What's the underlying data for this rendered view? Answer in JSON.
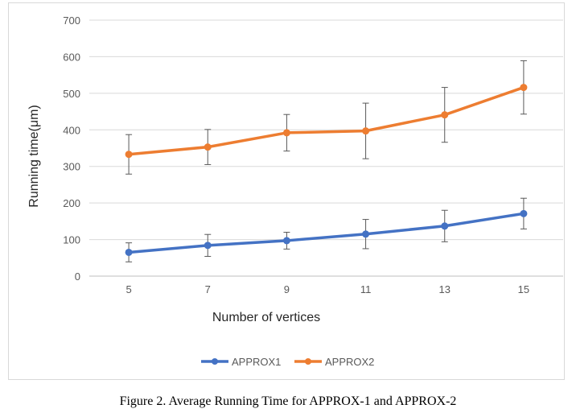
{
  "chart_data": {
    "type": "line",
    "x": [
      5,
      7,
      9,
      11,
      13,
      15
    ],
    "xlabel": "Number of vertices",
    "ylabel": "Running time(μm)",
    "ylim": [
      0,
      700
    ],
    "yticks": [
      0,
      100,
      200,
      300,
      400,
      500,
      600,
      700
    ],
    "grid": true,
    "legend_position": "bottom",
    "series": [
      {
        "name": "APPROX1",
        "color": "#4472c4",
        "values": [
          65,
          84,
          97,
          115,
          137,
          171
        ],
        "error": [
          26,
          30,
          23,
          40,
          43,
          42
        ]
      },
      {
        "name": "APPROX2",
        "color": "#ed7d31",
        "values": [
          333,
          353,
          392,
          397,
          441,
          516
        ],
        "error": [
          54,
          48,
          50,
          76,
          75,
          73
        ]
      }
    ]
  },
  "caption": "Figure 2. Average Running Time for APPROX-1 and APPROX-2"
}
